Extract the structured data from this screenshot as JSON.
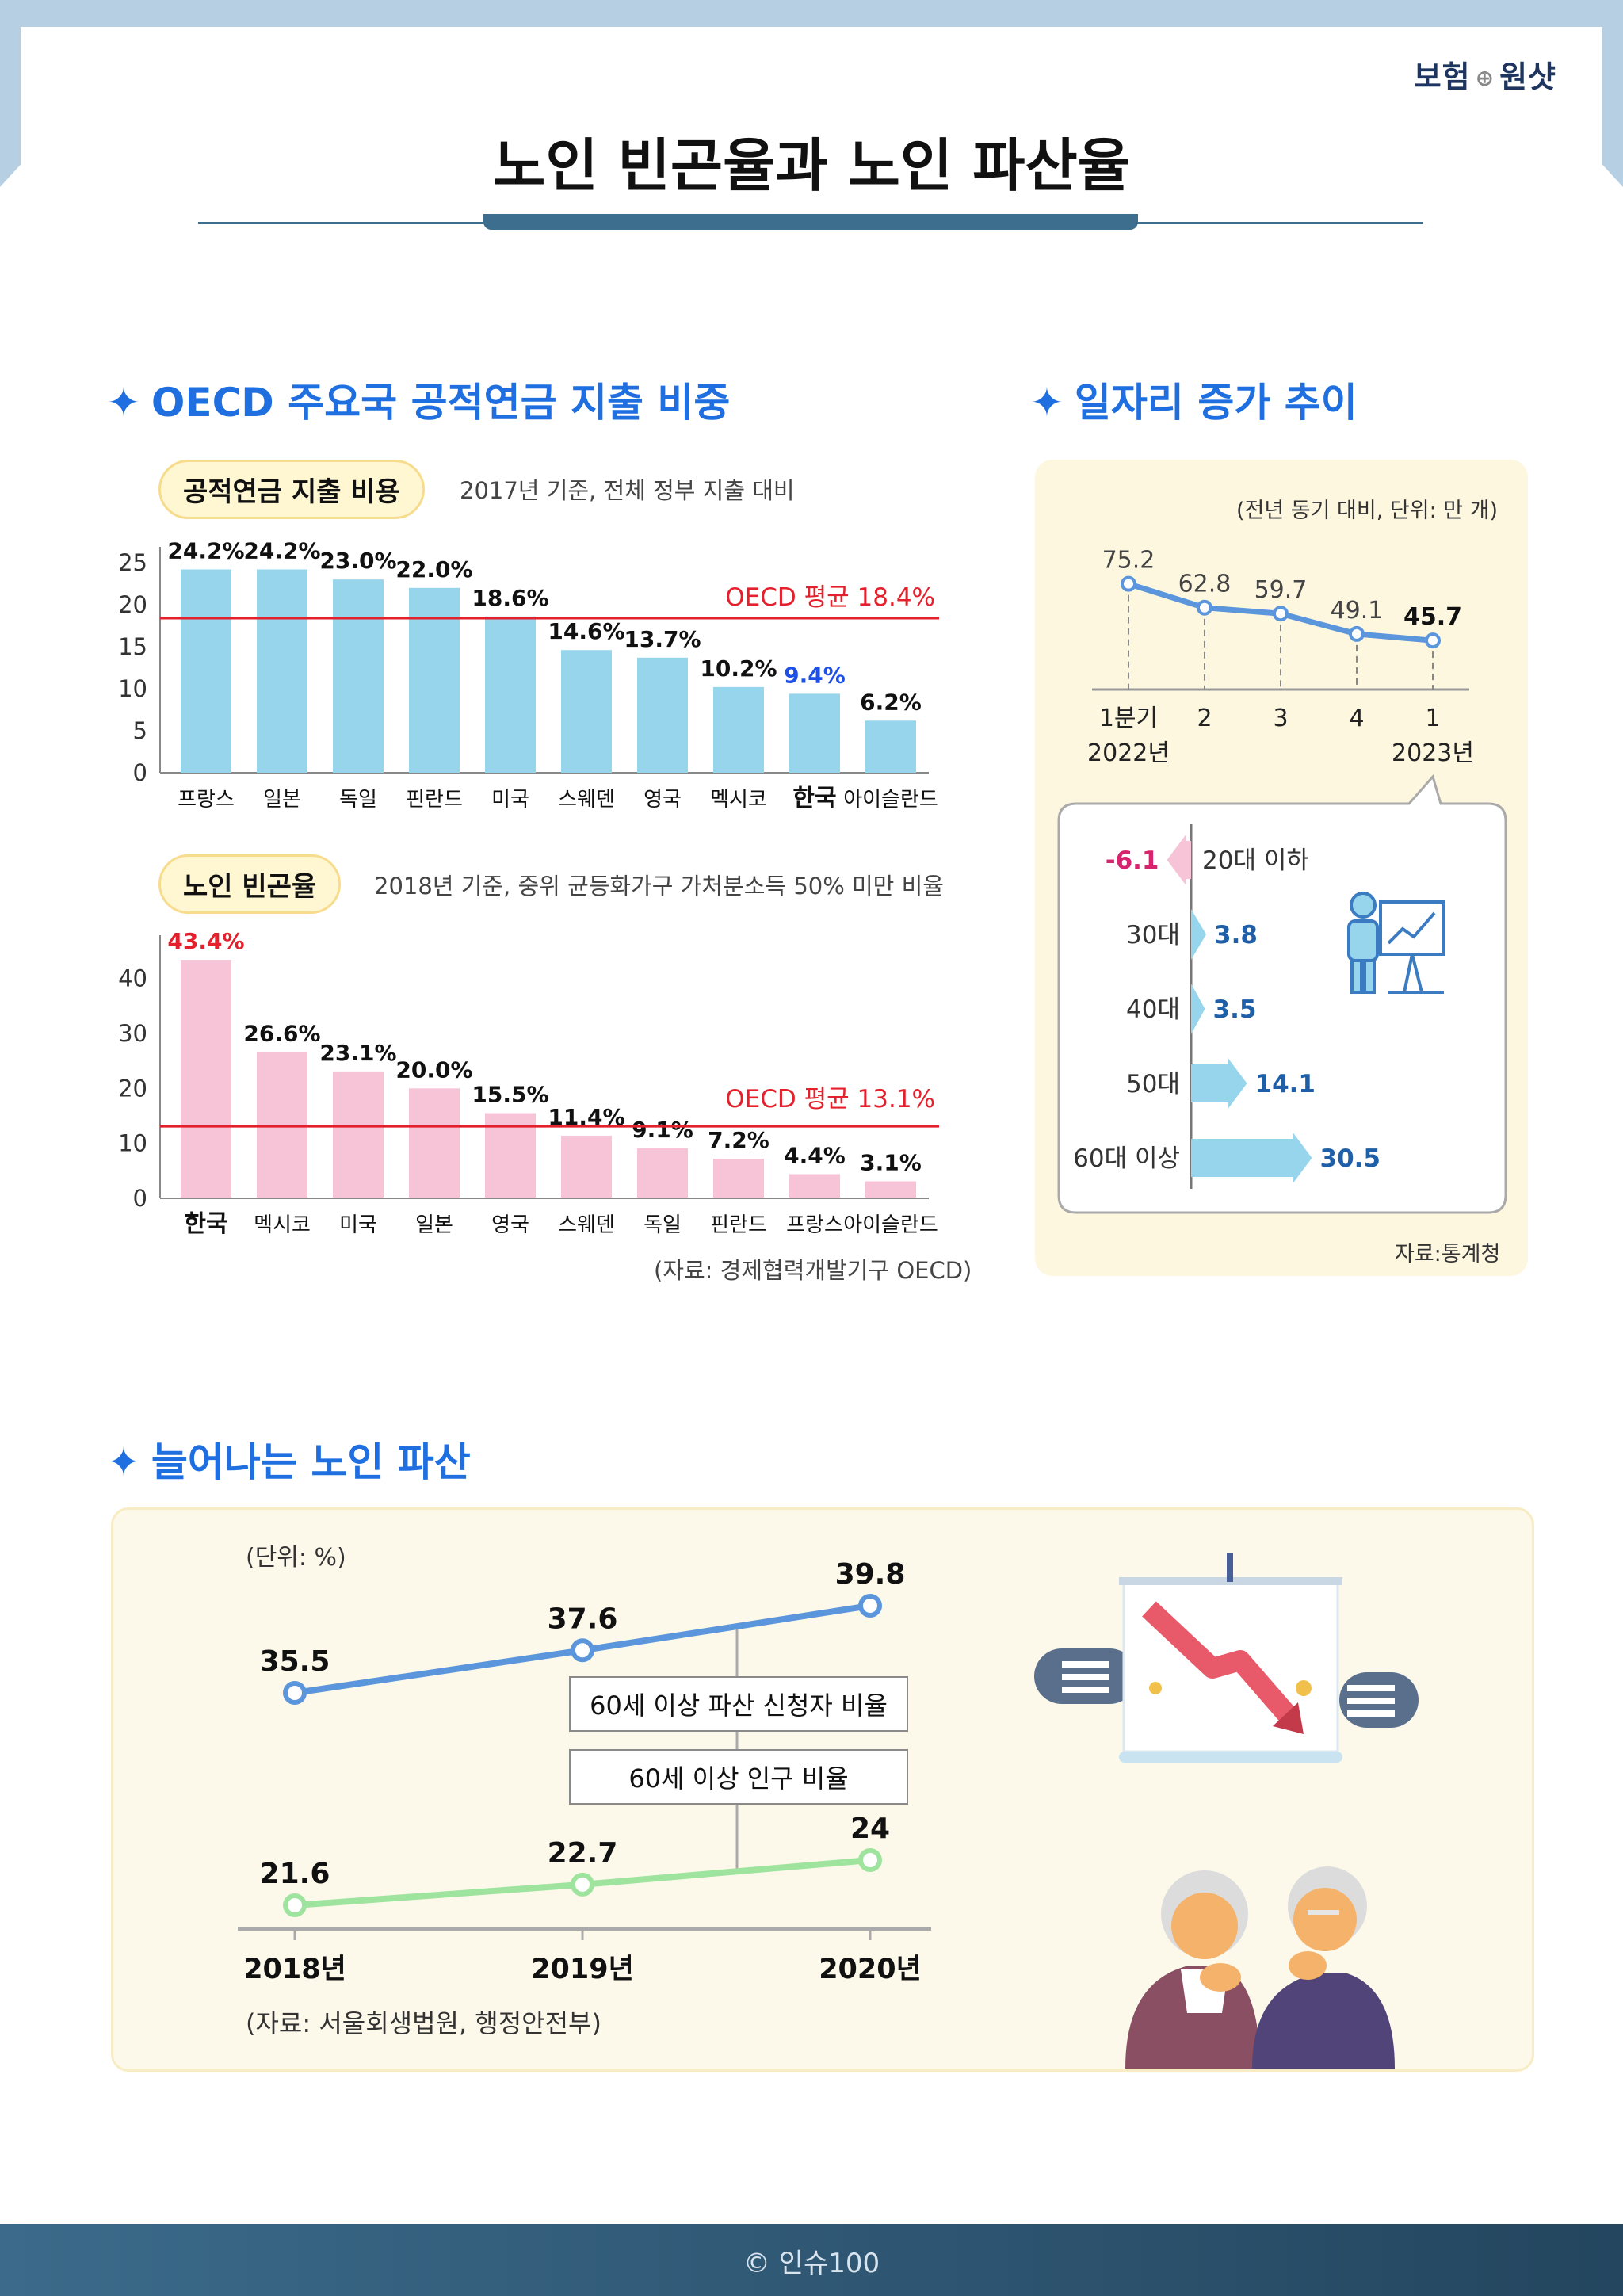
{
  "header": {
    "brand_left": "보험",
    "brand_right": "원샷",
    "title": "노인 빈곤율과 노인 파산율"
  },
  "section1": {
    "star": "✦",
    "title": "OECD 주요국 공적연금 지출 비중"
  },
  "section2": {
    "star": "✦",
    "title": "일자리 증가 추이"
  },
  "section3": {
    "star": "✦",
    "title": "늘어나는 노인 파산"
  },
  "chart_data": [
    {
      "type": "bar",
      "pill_label": "공적연금 지출 비용",
      "subtitle": "2017년 기준, 전체 정부 지출 대비",
      "categories": [
        "프랑스",
        "일본",
        "독일",
        "핀란드",
        "미국",
        "스웨덴",
        "영국",
        "멕시코",
        "한국",
        "아이슬란드"
      ],
      "values": [
        24.2,
        24.2,
        23.0,
        22.0,
        18.6,
        14.6,
        13.7,
        10.2,
        9.4,
        6.2
      ],
      "value_labels": [
        "24.2%",
        "24.2%",
        "23.0%",
        "22.0%",
        "18.6%",
        "14.6%",
        "13.7%",
        "10.2%",
        "9.4%",
        "6.2%"
      ],
      "y_ticks": [
        "0",
        "5",
        "10",
        "15",
        "20",
        "25"
      ],
      "ylim": [
        0,
        25
      ],
      "highlight_category": "한국",
      "reference_line": {
        "value": 18.4,
        "label": "OECD 평균 18.4%"
      },
      "bar_color": "#96d5ec",
      "highlight_color": "#1e50e8",
      "reference_color": "#e4202c"
    },
    {
      "type": "bar",
      "pill_label": "노인 빈곤율",
      "subtitle": "2018년 기준, 중위 균등화가구 가처분소득 50% 미만 비율",
      "categories": [
        "한국",
        "멕시코",
        "미국",
        "일본",
        "영국",
        "스웨덴",
        "독일",
        "핀란드",
        "프랑스",
        "아이슬란드"
      ],
      "values": [
        43.4,
        26.6,
        23.1,
        20.0,
        15.5,
        11.4,
        9.1,
        7.2,
        4.4,
        3.1
      ],
      "value_labels": [
        "43.4%",
        "26.6%",
        "23.1%",
        "20.0%",
        "15.5%",
        "11.4%",
        "9.1%",
        "7.2%",
        "4.4%",
        "3.1%"
      ],
      "y_ticks": [
        "0",
        "10",
        "20",
        "30",
        "40"
      ],
      "ylim": [
        0,
        45
      ],
      "highlight_category": "한국",
      "reference_line": {
        "value": 13.1,
        "label": "OECD 평균 13.1%"
      },
      "bar_color": "#f7c3d6",
      "highlight_color": "#e4202c",
      "reference_color": "#e4202c",
      "source": "(자료: 경제협력개발기구 OECD)"
    },
    {
      "type": "line",
      "note": "(전년 동기 대비, 단위: 만 개)",
      "x_labels": [
        "1분기",
        "2",
        "3",
        "4",
        "1"
      ],
      "year_labels": [
        "2022년",
        "2023년"
      ],
      "values": [
        75.2,
        62.8,
        59.7,
        49.1,
        45.7
      ],
      "value_labels": [
        "75.2",
        "62.8",
        "59.7",
        "49.1",
        "45.7"
      ],
      "line_color": "#5b96dc"
    },
    {
      "type": "bar",
      "orientation": "horizontal",
      "categories": [
        "20대 이하",
        "30대",
        "40대",
        "50대",
        "60대 이상"
      ],
      "values": [
        -6.1,
        3.8,
        3.5,
        14.1,
        30.5
      ],
      "value_labels": [
        "-6.1",
        "3.8",
        "3.5",
        "14.1",
        "30.5"
      ],
      "positive_color": "#96d5ec",
      "negative_color": "#f7c3d6",
      "source": "자료:통계청"
    },
    {
      "type": "line",
      "unit_note": "(단위: %)",
      "x": [
        "2018년",
        "2019년",
        "2020년"
      ],
      "series": [
        {
          "name": "60세 이상 파산 신청자 비율",
          "values": [
            35.5,
            37.6,
            39.8
          ],
          "labels": [
            "35.5",
            "37.6",
            "39.8"
          ],
          "color": "#5b96dc"
        },
        {
          "name": "60세 이상 인구 비율",
          "values": [
            21.6,
            22.7,
            24
          ],
          "labels": [
            "21.6",
            "22.7",
            "24"
          ],
          "color": "#9ee39e"
        }
      ],
      "source": "(자료: 서울회생법원, 행정안전부)"
    }
  ],
  "footer": {
    "copyright": "© 인슈100"
  }
}
